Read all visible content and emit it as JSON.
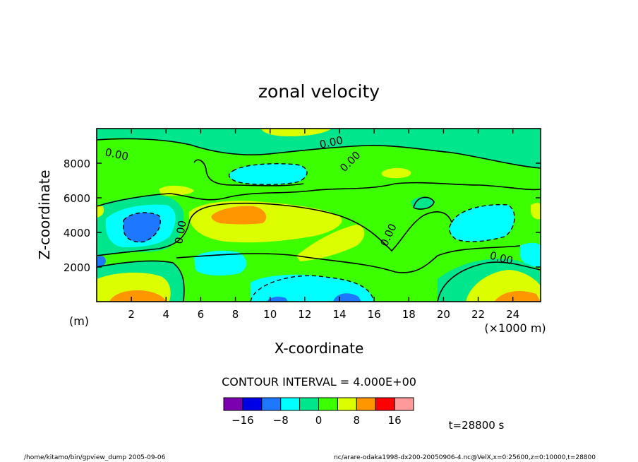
{
  "chart_data": {
    "type": "heatmap",
    "title": "zonal velocity",
    "xlabel": "X-coordinate",
    "ylabel": "Z-coordinate",
    "x_unit": "(×1000 m)",
    "y_unit": "(m)",
    "xlim": [
      0,
      25.6
    ],
    "ylim": [
      0,
      10000
    ],
    "x_ticks": [
      "2",
      "4",
      "6",
      "8",
      "10",
      "12",
      "14",
      "16",
      "18",
      "20",
      "22",
      "24"
    ],
    "y_ticks": [
      "2000",
      "4000",
      "6000",
      "8000"
    ],
    "contour_interval_text": "CONTOUR INTERVAL = 4.000E+00",
    "contour_label": "0.00",
    "colorbar": {
      "colors": [
        "#7b00b0",
        "#0000e6",
        "#1e78ff",
        "#00ffff",
        "#00e68c",
        "#3cff00",
        "#dcff00",
        "#ff9600",
        "#ff0000",
        "#ff9a9a"
      ],
      "labels": [
        "−16",
        "−8",
        "0",
        "8",
        "16"
      ]
    },
    "time_label": "t=28800 s"
  },
  "footer": {
    "left": "/home/kitamo/bin/gpview_dump  2005-09-06",
    "right": "nc/arare-odaka1998-dx200-20050906-4.nc@VelX,x=0:25600,z=0:10000,t=28800"
  }
}
